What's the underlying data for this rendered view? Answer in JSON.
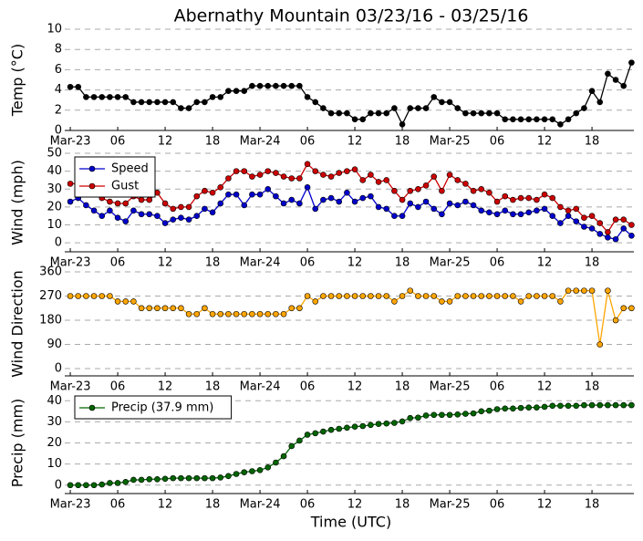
{
  "chart_data": [
    {
      "type": "line",
      "title": "Abernathy Mountain 03/23/16 - 03/25/16",
      "ylabel": "Temp (°C)",
      "x": [
        0,
        1,
        2,
        3,
        4,
        5,
        6,
        7,
        8,
        9,
        10,
        11,
        12,
        13,
        14,
        15,
        16,
        17,
        18,
        19,
        20,
        21,
        22,
        23,
        24,
        25,
        26,
        27,
        28,
        29,
        30,
        31,
        32,
        33,
        34,
        35,
        36,
        37,
        38,
        39,
        40,
        41,
        42,
        43,
        44,
        45,
        46,
        47,
        48,
        49,
        50,
        51,
        52,
        53,
        54,
        55,
        56,
        57,
        58,
        59,
        60,
        61,
        62,
        63,
        64,
        65,
        66,
        67,
        68,
        69,
        70,
        71
      ],
      "series": [
        {
          "name": "Temp",
          "color": "#000000",
          "values": [
            4.3,
            4.3,
            3.3,
            3.3,
            3.3,
            3.3,
            3.3,
            3.3,
            2.8,
            2.8,
            2.8,
            2.8,
            2.8,
            2.8,
            2.2,
            2.2,
            2.8,
            2.8,
            3.3,
            3.3,
            3.9,
            3.9,
            3.9,
            4.4,
            4.4,
            4.4,
            4.4,
            4.4,
            4.4,
            4.4,
            3.3,
            2.8,
            2.2,
            1.7,
            1.7,
            1.7,
            1.1,
            1.1,
            1.7,
            1.7,
            1.7,
            2.2,
            0.6,
            2.2,
            2.2,
            2.2,
            3.3,
            2.8,
            2.8,
            2.2,
            1.7,
            1.7,
            1.7,
            1.7,
            1.7,
            1.1,
            1.1,
            1.1,
            1.1,
            1.1,
            1.1,
            1.1,
            0.6,
            1.1,
            1.7,
            2.2,
            3.9,
            2.8,
            5.6,
            5.0,
            4.4,
            6.7
          ]
        }
      ],
      "xlim": [
        -0.7,
        71.3
      ],
      "xticks": [
        {
          "value": 0,
          "label": "Mar-23"
        },
        {
          "value": 6,
          "label": "06"
        },
        {
          "value": 12,
          "label": "12"
        },
        {
          "value": 18,
          "label": "18"
        },
        {
          "value": 24,
          "label": "Mar-24"
        },
        {
          "value": 30,
          "label": "06"
        },
        {
          "value": 36,
          "label": "12"
        },
        {
          "value": 42,
          "label": "18"
        },
        {
          "value": 48,
          "label": "Mar-25"
        },
        {
          "value": 54,
          "label": "06"
        },
        {
          "value": 60,
          "label": "12"
        },
        {
          "value": 66,
          "label": "18"
        }
      ],
      "ylim": [
        0,
        10
      ],
      "yticks": [
        0,
        2,
        4,
        6,
        8,
        10
      ],
      "grid": true
    },
    {
      "type": "line",
      "ylabel": "Wind (mph)",
      "x": [
        0,
        1,
        2,
        3,
        4,
        5,
        6,
        7,
        8,
        9,
        10,
        11,
        12,
        13,
        14,
        15,
        16,
        17,
        18,
        19,
        20,
        21,
        22,
        23,
        24,
        25,
        26,
        27,
        28,
        29,
        30,
        31,
        32,
        33,
        34,
        35,
        36,
        37,
        38,
        39,
        40,
        41,
        42,
        43,
        44,
        45,
        46,
        47,
        48,
        49,
        50,
        51,
        52,
        53,
        54,
        55,
        56,
        57,
        58,
        59,
        60,
        61,
        62,
        63,
        64,
        65,
        66,
        67,
        68,
        69,
        70,
        71
      ],
      "series": [
        {
          "name": "Speed",
          "color": "#0000cc",
          "values": [
            23,
            25,
            21,
            18,
            15,
            18,
            14,
            12,
            18,
            16,
            16,
            15,
            11,
            13,
            14,
            13,
            15,
            19,
            17,
            22,
            27,
            27,
            21,
            27,
            27,
            30,
            26,
            22,
            24,
            22,
            31,
            19,
            24,
            25,
            23,
            28,
            23,
            25,
            26,
            20,
            19,
            15,
            15,
            22,
            20,
            23,
            19,
            16,
            22,
            21,
            23,
            21,
            18,
            17,
            16,
            18,
            16,
            16,
            17,
            18,
            19,
            15,
            11,
            15,
            12,
            9,
            8,
            5,
            3,
            2,
            8,
            4
          ]
        },
        {
          "name": "Gust",
          "color": "#cc0000",
          "values": [
            33,
            33,
            32,
            31,
            25,
            23,
            22,
            22,
            26,
            24,
            24,
            28,
            22,
            19,
            20,
            20,
            26,
            29,
            28,
            31,
            36,
            40,
            40,
            37,
            38,
            40,
            39,
            37,
            36,
            36,
            44,
            40,
            38,
            37,
            39,
            40,
            41,
            35,
            38,
            34,
            35,
            29,
            24,
            29,
            30,
            32,
            37,
            29,
            38,
            35,
            33,
            29,
            30,
            28,
            23,
            26,
            24,
            25,
            25,
            24,
            27,
            25,
            20,
            18,
            19,
            14,
            15,
            11,
            6,
            13,
            13,
            10
          ]
        }
      ],
      "legend": "upper left",
      "xlim": [
        -0.7,
        71.3
      ],
      "xticks": [
        {
          "value": 0,
          "label": "Mar-23"
        },
        {
          "value": 6,
          "label": "06"
        },
        {
          "value": 12,
          "label": "12"
        },
        {
          "value": 18,
          "label": "18"
        },
        {
          "value": 24,
          "label": "Mar-24"
        },
        {
          "value": 30,
          "label": "06"
        },
        {
          "value": 36,
          "label": "12"
        },
        {
          "value": 42,
          "label": "18"
        },
        {
          "value": 48,
          "label": "Mar-25"
        },
        {
          "value": 54,
          "label": "06"
        },
        {
          "value": 60,
          "label": "12"
        },
        {
          "value": 66,
          "label": "18"
        }
      ],
      "ylim": [
        -5,
        50
      ],
      "yticks": [
        0,
        10,
        20,
        30,
        40,
        50
      ],
      "grid": true
    },
    {
      "type": "line",
      "ylabel": "Wind Direction",
      "x": [
        0,
        1,
        2,
        3,
        4,
        5,
        6,
        7,
        8,
        9,
        10,
        11,
        12,
        13,
        14,
        15,
        16,
        17,
        18,
        19,
        20,
        21,
        22,
        23,
        24,
        25,
        26,
        27,
        28,
        29,
        30,
        31,
        32,
        33,
        34,
        35,
        36,
        37,
        38,
        39,
        40,
        41,
        42,
        43,
        44,
        45,
        46,
        47,
        48,
        49,
        50,
        51,
        52,
        53,
        54,
        55,
        56,
        57,
        58,
        59,
        60,
        61,
        62,
        63,
        64,
        65,
        66,
        67,
        68,
        69,
        70,
        71
      ],
      "series": [
        {
          "name": "Direction",
          "color": "#ffa500",
          "values": [
            270,
            270,
            270,
            270,
            270,
            270,
            250,
            250,
            250,
            225,
            225,
            225,
            225,
            225,
            225,
            203,
            203,
            225,
            203,
            203,
            203,
            203,
            203,
            203,
            203,
            203,
            203,
            203,
            225,
            225,
            270,
            250,
            270,
            270,
            270,
            270,
            270,
            270,
            270,
            270,
            270,
            250,
            270,
            290,
            270,
            270,
            270,
            250,
            250,
            270,
            270,
            270,
            270,
            270,
            270,
            270,
            270,
            250,
            270,
            270,
            270,
            270,
            250,
            290,
            290,
            290,
            290,
            90,
            290,
            180,
            225,
            225
          ]
        }
      ],
      "xlim": [
        -0.7,
        71.3
      ],
      "xticks": [
        {
          "value": 0,
          "label": "Mar-23"
        },
        {
          "value": 6,
          "label": "06"
        },
        {
          "value": 12,
          "label": "12"
        },
        {
          "value": 18,
          "label": "18"
        },
        {
          "value": 24,
          "label": "Mar-24"
        },
        {
          "value": 30,
          "label": "06"
        },
        {
          "value": 36,
          "label": "12"
        },
        {
          "value": 42,
          "label": "18"
        },
        {
          "value": 48,
          "label": "Mar-25"
        },
        {
          "value": 54,
          "label": "06"
        },
        {
          "value": 60,
          "label": "12"
        },
        {
          "value": 66,
          "label": "18"
        }
      ],
      "ylim": [
        -27,
        360
      ],
      "yticks": [
        0,
        90,
        180,
        270,
        360
      ],
      "grid": true
    },
    {
      "type": "line",
      "ylabel": "Precip (mm)",
      "xlabel": "Time (UTC)",
      "x": [
        0,
        1,
        2,
        3,
        4,
        5,
        6,
        7,
        8,
        9,
        10,
        11,
        12,
        13,
        14,
        15,
        16,
        17,
        18,
        19,
        20,
        21,
        22,
        23,
        24,
        25,
        26,
        27,
        28,
        29,
        30,
        31,
        32,
        33,
        34,
        35,
        36,
        37,
        38,
        39,
        40,
        41,
        42,
        43,
        44,
        45,
        46,
        47,
        48,
        49,
        50,
        51,
        52,
        53,
        54,
        55,
        56,
        57,
        58,
        59,
        60,
        61,
        62,
        63,
        64,
        65,
        66,
        67,
        68,
        69,
        70,
        71
      ],
      "series": [
        {
          "name": "Precip (37.9 mm)",
          "color": "#006400",
          "values": [
            0,
            0,
            0,
            0,
            0.3,
            1,
            1,
            1.5,
            2.5,
            2.5,
            2.8,
            2.8,
            3,
            3.3,
            3.3,
            3.3,
            3.3,
            3.3,
            3.3,
            3.6,
            4.3,
            5.3,
            6.1,
            6.6,
            7.1,
            8.4,
            10.7,
            13.7,
            18.5,
            21.1,
            23.9,
            24.6,
            25.4,
            26.2,
            26.7,
            27.2,
            27.7,
            28,
            28.5,
            29,
            29.2,
            29.5,
            30.2,
            31.8,
            32,
            33,
            33.3,
            33.3,
            33.3,
            33.5,
            33.8,
            34,
            35,
            35.3,
            36,
            36.3,
            36.3,
            36.6,
            36.8,
            36.8,
            37.1,
            37.6,
            37.6,
            37.6,
            37.6,
            37.9,
            37.9,
            37.9,
            37.9,
            37.9,
            37.9,
            37.9
          ]
        }
      ],
      "legend": "upper left",
      "xlim": [
        -0.7,
        71.3
      ],
      "xticks": [
        {
          "value": 0,
          "label": "Mar-23"
        },
        {
          "value": 6,
          "label": "06"
        },
        {
          "value": 12,
          "label": "12"
        },
        {
          "value": 18,
          "label": "18"
        },
        {
          "value": 24,
          "label": "Mar-24"
        },
        {
          "value": 30,
          "label": "06"
        },
        {
          "value": 36,
          "label": "12"
        },
        {
          "value": 42,
          "label": "18"
        },
        {
          "value": 48,
          "label": "Mar-25"
        },
        {
          "value": 54,
          "label": "06"
        },
        {
          "value": 60,
          "label": "12"
        },
        {
          "value": 66,
          "label": "18"
        }
      ],
      "ylim": [
        -4,
        44
      ],
      "yticks": [
        0,
        10,
        20,
        30,
        40
      ],
      "grid": true
    }
  ]
}
